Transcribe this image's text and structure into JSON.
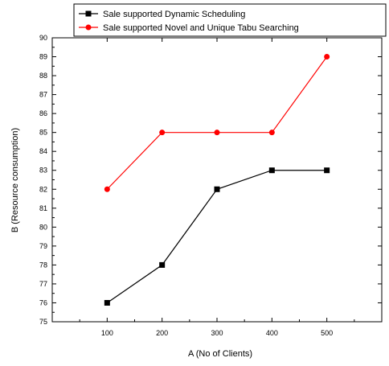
{
  "chart_data": {
    "type": "line",
    "xlabel": "A (No of Clients)",
    "ylabel": "B (Resource consumption)",
    "x": [
      100,
      200,
      300,
      400,
      500
    ],
    "x_ticks": [
      100,
      200,
      300,
      400,
      500
    ],
    "xlim": [
      0,
      600
    ],
    "ylim": [
      75,
      90
    ],
    "y_ticks": [
      75,
      76,
      77,
      78,
      79,
      80,
      81,
      82,
      83,
      84,
      85,
      86,
      87,
      88,
      89,
      90
    ],
    "grid": false,
    "legend_position": "top",
    "series": [
      {
        "name": "Sale supported Dynamic Scheduling",
        "values": [
          76,
          78,
          82,
          83,
          83
        ],
        "color": "#000000",
        "marker": "square"
      },
      {
        "name": "Sale supported Novel and Unique Tabu Searching",
        "values": [
          82,
          85,
          85,
          85,
          89
        ],
        "color": "#ff0000",
        "marker": "circle"
      }
    ]
  }
}
